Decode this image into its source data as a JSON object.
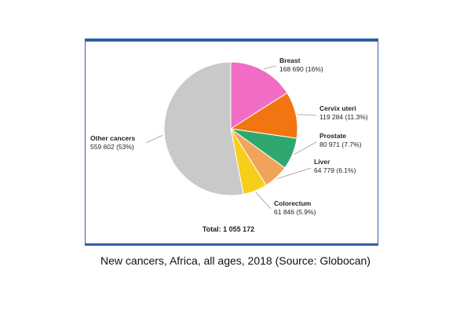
{
  "chart_data": {
    "type": "pie",
    "slices": [
      {
        "name": "Breast",
        "value": 168690,
        "label_value": "168 690 (16%)",
        "color": "#f06cc5"
      },
      {
        "name": "Cervix uteri",
        "value": 119284,
        "label_value": "119 284 (11.3%)",
        "color": "#f27512"
      },
      {
        "name": "Prostate",
        "value": 80971,
        "label_value": "80 971 (7.7%)",
        "color": "#2fa870"
      },
      {
        "name": "Liver",
        "value": 64779,
        "label_value": "64 779 (6.1%)",
        "color": "#f2a35a"
      },
      {
        "name": "Colorectum",
        "value": 61846,
        "label_value": "61 846 (5.9%)",
        "color": "#f5cf1a"
      },
      {
        "name": "Other cancers",
        "value": 559602,
        "label_value": "559 602 (53%)",
        "color": "#c9c9c9"
      }
    ],
    "total_label": "Total: 1 055 172"
  },
  "caption": "New cancers, Africa, all ages, 2018 (Source: Globocan)"
}
